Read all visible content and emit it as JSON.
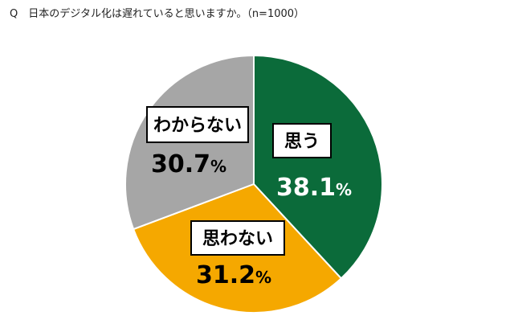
{
  "question": "Q　日本のデジタル化は遅れていると思いますか。（n=1000）",
  "chart_data": {
    "type": "pie",
    "categories": [
      "思う",
      "思わない",
      "わからない"
    ],
    "values": [
      38.1,
      31.2,
      30.7
    ],
    "value_labels": [
      "38.1",
      "31.2",
      "30.7"
    ],
    "unit": "%",
    "colors": [
      "#0b6b3a",
      "#f5a800",
      "#a6a6a6"
    ],
    "value_text_colors": [
      "#ffffff",
      "#000000",
      "#000000"
    ],
    "start": "top",
    "direction": "clockwise"
  }
}
